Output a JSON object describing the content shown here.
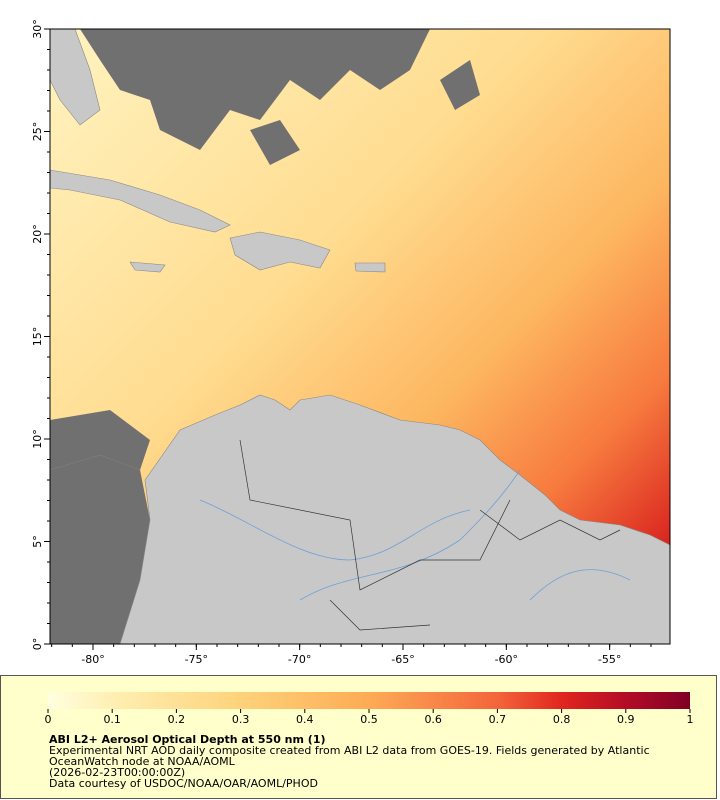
{
  "map": {
    "xlim": [
      -82.08,
      -52.08
    ],
    "ylim": [
      0,
      30
    ],
    "xticks": [
      {
        "value": -80,
        "label": "-80°"
      },
      {
        "value": -75,
        "label": "-75°"
      },
      {
        "value": -70,
        "label": "-70°"
      },
      {
        "value": -65,
        "label": "-65°"
      },
      {
        "value": -60,
        "label": "-60°"
      },
      {
        "value": -55,
        "label": "-55°"
      }
    ],
    "yticks": [
      {
        "value": 0,
        "label": "0°"
      },
      {
        "value": 5,
        "label": "5°"
      },
      {
        "value": 10,
        "label": "10°"
      },
      {
        "value": 15,
        "label": "15°"
      },
      {
        "value": 20,
        "label": "20°"
      },
      {
        "value": 25,
        "label": "25°"
      },
      {
        "value": 30,
        "label": "30°"
      }
    ]
  },
  "colorbar": {
    "range": [
      0,
      1
    ],
    "ticks": [
      0,
      0.1,
      0.2,
      0.3,
      0.4,
      0.5,
      0.6,
      0.7,
      0.8,
      0.9,
      1
    ]
  },
  "title": "ABI L2+ Aerosol Optical Depth at 550 nm (1)",
  "description": "Experimental NRT AOD daily composite created from ABI L2 data from GOES-19. Fields generated by Atlantic OceanWatch node at NOAA/AOML",
  "timestamp": "(2026-02-23T00:00:00Z)",
  "credit": "Data courtesy of USDOC/NOAA/OAR/AOML/PHOD"
}
